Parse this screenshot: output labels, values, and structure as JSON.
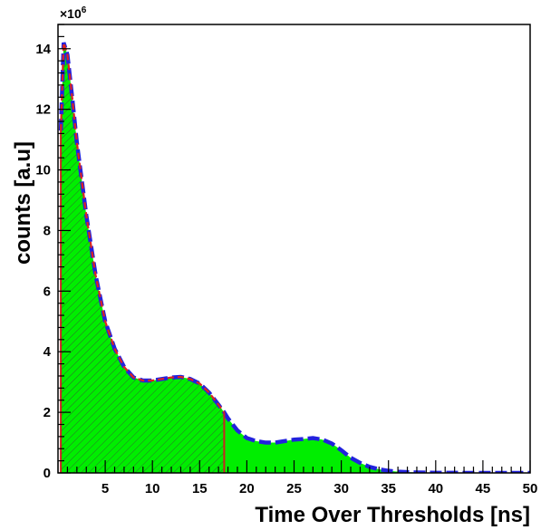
{
  "chart_data": {
    "type": "area",
    "xlabel": "Time Over Thresholds [ns]",
    "ylabel": "counts [a.u]",
    "y_multiplier": "×10",
    "y_multiplier_exp": "6",
    "xlim": [
      0,
      50
    ],
    "ylim": [
      0,
      14.8
    ],
    "x_ticks": [
      5,
      10,
      15,
      20,
      25,
      30,
      35,
      40,
      45,
      50
    ],
    "y_ticks": [
      0,
      2,
      4,
      6,
      8,
      10,
      12,
      14
    ],
    "grid": false,
    "colors": {
      "fill": "#00ee00",
      "hatch": "#2d6e2d",
      "full_curve": "#2222dd",
      "cut_curve": "#dd2222",
      "cut_line": "#cc2222"
    },
    "cut_x": 17.6,
    "series": [
      {
        "x": [
          0.3,
          0.6,
          1.0,
          1.5,
          2.0,
          3.0,
          4.0,
          5.0,
          6.0,
          7.0,
          8.0,
          9.0,
          10.0,
          11.0,
          12.0,
          13.0,
          14.0,
          15.0,
          16.0,
          17.0,
          17.6,
          18.0,
          19.0,
          20.0,
          21.0,
          22.0,
          23.0,
          24.0,
          25.0,
          26.0,
          27.0,
          28.0,
          29.0,
          30.0,
          31.0,
          32.0,
          33.0,
          34.0,
          35.0,
          36.0,
          37.0,
          38.0,
          39.0,
          40.0,
          42.0,
          44.0,
          46.0,
          48.0,
          50.0
        ],
        "values": [
          11.3,
          14.2,
          13.8,
          12.4,
          10.9,
          8.5,
          6.5,
          5.0,
          4.1,
          3.5,
          3.15,
          3.05,
          3.05,
          3.1,
          3.15,
          3.17,
          3.1,
          2.95,
          2.65,
          2.25,
          2.0,
          1.8,
          1.4,
          1.15,
          1.05,
          1.0,
          1.0,
          1.05,
          1.1,
          1.12,
          1.15,
          1.1,
          0.97,
          0.75,
          0.5,
          0.33,
          0.2,
          0.12,
          0.07,
          0.04,
          0.025,
          0.015,
          0.01,
          0.005,
          0.002,
          0.001,
          0.0,
          0.0,
          0.0
        ]
      }
    ]
  }
}
